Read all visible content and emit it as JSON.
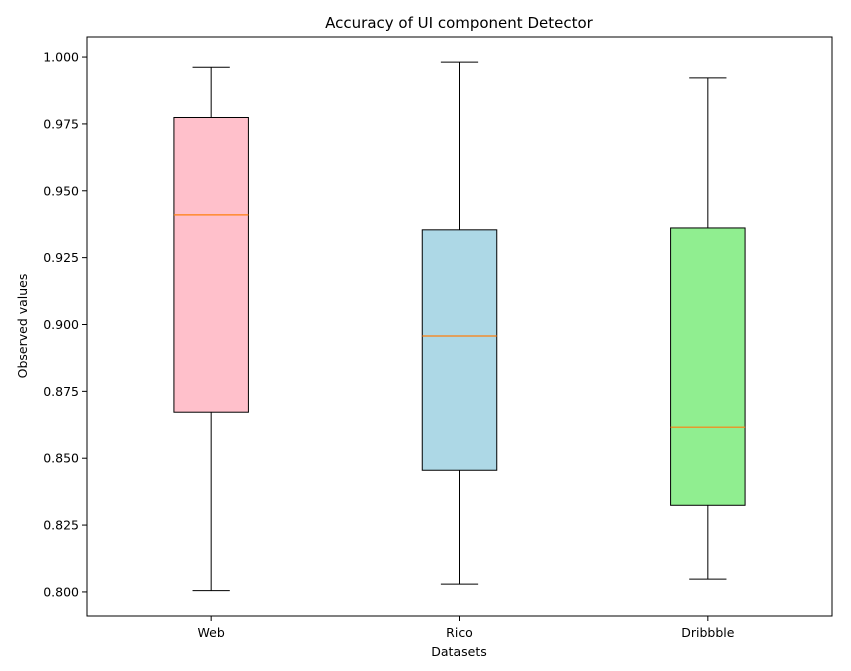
{
  "chart_data": {
    "type": "box",
    "title": "Accuracy of UI component Detector",
    "xlabel": "Datasets",
    "ylabel": "Observed values",
    "ylim": [
      0.791,
      1.0075
    ],
    "yticks": [
      0.8,
      0.825,
      0.85,
      0.875,
      0.9,
      0.925,
      0.95,
      0.975,
      1.0
    ],
    "ytick_labels": [
      "0.800",
      "0.825",
      "0.850",
      "0.875",
      "0.900",
      "0.925",
      "0.950",
      "0.975",
      "1.000"
    ],
    "grid": false,
    "categories": [
      "Web",
      "Rico",
      "Dribbble"
    ],
    "boxes": [
      {
        "label": "Web",
        "whisker_low": 0.8005,
        "q1": 0.8672,
        "median": 0.941,
        "q3": 0.9774,
        "whisker_high": 0.9962,
        "color": "#ffc0cb"
      },
      {
        "label": "Rico",
        "whisker_low": 0.8029,
        "q1": 0.8455,
        "median": 0.8957,
        "q3": 0.9354,
        "whisker_high": 0.9981,
        "color": "#add8e6"
      },
      {
        "label": "Dribbble",
        "whisker_low": 0.8048,
        "q1": 0.8324,
        "median": 0.8616,
        "q3": 0.9361,
        "whisker_high": 0.9922,
        "color": "#90ee90"
      }
    ],
    "median_color": "#ff7f0e"
  }
}
